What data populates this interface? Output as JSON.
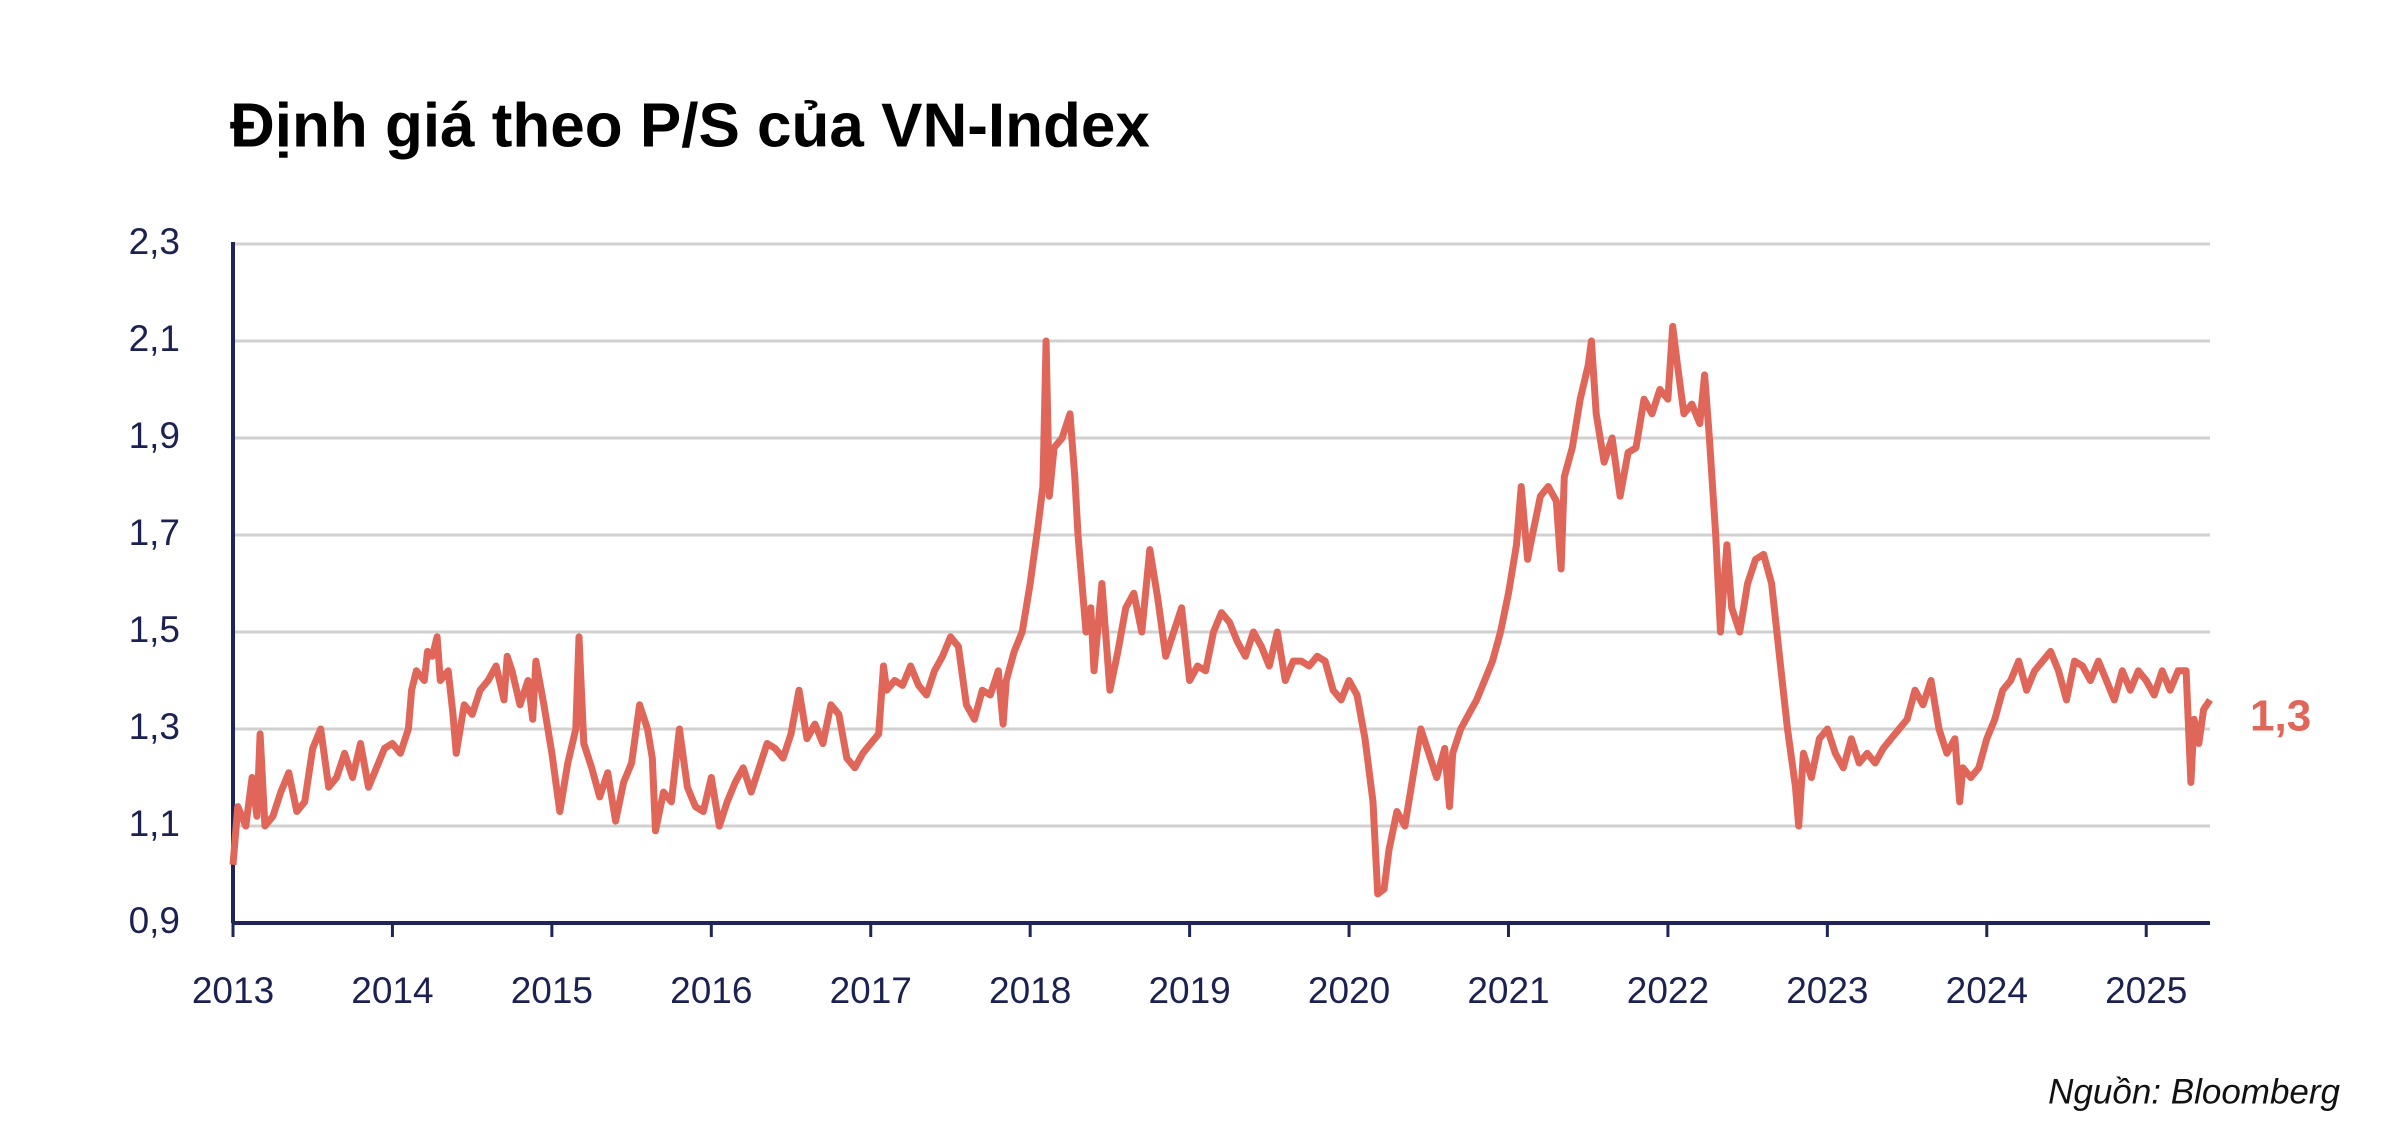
{
  "chart_data": {
    "type": "line",
    "title": "Định giá theo P/S của VN-Index",
    "source": "Nguồn: Bloomberg",
    "annotation": {
      "text": "1,3",
      "value": 1.3
    },
    "xlim": [
      2013,
      2025.4
    ],
    "xticks": [
      2013,
      2014,
      2015,
      2016,
      2017,
      2018,
      2019,
      2020,
      2021,
      2022,
      2023,
      2024,
      2025
    ],
    "ylim": [
      0.9,
      2.3
    ],
    "yticks": [
      {
        "value": 0.9,
        "label": "0,9"
      },
      {
        "value": 1.1,
        "label": "1,1"
      },
      {
        "value": 1.3,
        "label": "1,3"
      },
      {
        "value": 1.5,
        "label": "1,5"
      },
      {
        "value": 1.7,
        "label": "1,7"
      },
      {
        "value": 1.9,
        "label": "1,9"
      },
      {
        "value": 2.1,
        "label": "2,1"
      },
      {
        "value": 2.3,
        "label": "2,3"
      }
    ],
    "grid": true,
    "x": [
      2013.0,
      2013.03,
      2013.08,
      2013.12,
      2013.15,
      2013.17,
      2013.2,
      2013.25,
      2013.3,
      2013.35,
      2013.4,
      2013.45,
      2013.5,
      2013.55,
      2013.6,
      2013.65,
      2013.7,
      2013.75,
      2013.8,
      2013.85,
      2013.9,
      2013.95,
      2014.0,
      2014.05,
      2014.1,
      2014.12,
      2014.15,
      2014.2,
      2014.22,
      2014.25,
      2014.28,
      2014.3,
      2014.35,
      2014.38,
      2014.4,
      2014.45,
      2014.5,
      2014.55,
      2014.6,
      2014.65,
      2014.7,
      2014.72,
      2014.75,
      2014.8,
      2014.85,
      2014.88,
      2014.9,
      2014.95,
      2015.0,
      2015.05,
      2015.1,
      2015.15,
      2015.17,
      2015.2,
      2015.25,
      2015.3,
      2015.35,
      2015.4,
      2015.45,
      2015.5,
      2015.55,
      2015.6,
      2015.63,
      2015.65,
      2015.7,
      2015.75,
      2015.8,
      2015.85,
      2015.9,
      2015.95,
      2016.0,
      2016.05,
      2016.1,
      2016.15,
      2016.2,
      2016.25,
      2016.3,
      2016.35,
      2016.4,
      2016.45,
      2016.5,
      2016.55,
      2016.6,
      2016.65,
      2016.7,
      2016.75,
      2016.8,
      2016.85,
      2016.9,
      2016.95,
      2017.0,
      2017.05,
      2017.08,
      2017.1,
      2017.15,
      2017.2,
      2017.25,
      2017.3,
      2017.35,
      2017.4,
      2017.45,
      2017.5,
      2017.55,
      2017.6,
      2017.65,
      2017.7,
      2017.75,
      2017.8,
      2017.83,
      2017.85,
      2017.9,
      2017.95,
      2018.0,
      2018.05,
      2018.08,
      2018.1,
      2018.12,
      2018.15,
      2018.2,
      2018.25,
      2018.28,
      2018.3,
      2018.35,
      2018.38,
      2018.4,
      2018.45,
      2018.5,
      2018.55,
      2018.6,
      2018.65,
      2018.7,
      2018.75,
      2018.8,
      2018.85,
      2018.9,
      2018.95,
      2019.0,
      2019.05,
      2019.1,
      2019.15,
      2019.2,
      2019.25,
      2019.3,
      2019.35,
      2019.4,
      2019.45,
      2019.5,
      2019.55,
      2019.6,
      2019.65,
      2019.7,
      2019.75,
      2019.8,
      2019.85,
      2019.9,
      2019.95,
      2020.0,
      2020.05,
      2020.1,
      2020.15,
      2020.18,
      2020.22,
      2020.25,
      2020.3,
      2020.35,
      2020.4,
      2020.45,
      2020.5,
      2020.55,
      2020.6,
      2020.63,
      2020.65,
      2020.7,
      2020.75,
      2020.8,
      2020.85,
      2020.9,
      2020.95,
      2021.0,
      2021.05,
      2021.08,
      2021.12,
      2021.15,
      2021.2,
      2021.25,
      2021.3,
      2021.33,
      2021.35,
      2021.4,
      2021.45,
      2021.5,
      2021.52,
      2021.55,
      2021.6,
      2021.65,
      2021.7,
      2021.75,
      2021.8,
      2021.85,
      2021.9,
      2021.95,
      2022.0,
      2022.03,
      2022.06,
      2022.1,
      2022.15,
      2022.2,
      2022.23,
      2022.26,
      2022.3,
      2022.33,
      2022.37,
      2022.4,
      2022.45,
      2022.5,
      2022.55,
      2022.6,
      2022.65,
      2022.7,
      2022.75,
      2022.8,
      2022.82,
      2022.85,
      2022.9,
      2022.95,
      2023.0,
      2023.05,
      2023.1,
      2023.15,
      2023.2,
      2023.25,
      2023.3,
      2023.35,
      2023.4,
      2023.45,
      2023.5,
      2023.55,
      2023.6,
      2023.65,
      2023.7,
      2023.75,
      2023.8,
      2023.83,
      2023.85,
      2023.9,
      2023.95,
      2024.0,
      2024.05,
      2024.1,
      2024.15,
      2024.2,
      2024.25,
      2024.3,
      2024.35,
      2024.4,
      2024.45,
      2024.5,
      2024.55,
      2024.6,
      2024.65,
      2024.7,
      2024.75,
      2024.8,
      2024.85,
      2024.9,
      2024.95,
      2025.0,
      2025.05,
      2025.1,
      2025.15,
      2025.2,
      2025.25,
      2025.28,
      2025.3,
      2025.33,
      2025.36,
      2025.4
    ],
    "series": [
      {
        "color": "#e0665a",
        "values": [
          1.02,
          1.14,
          1.1,
          1.2,
          1.12,
          1.29,
          1.1,
          1.12,
          1.17,
          1.21,
          1.13,
          1.15,
          1.26,
          1.3,
          1.18,
          1.2,
          1.25,
          1.2,
          1.27,
          1.18,
          1.22,
          1.26,
          1.27,
          1.25,
          1.3,
          1.38,
          1.42,
          1.4,
          1.46,
          1.45,
          1.49,
          1.4,
          1.42,
          1.33,
          1.25,
          1.35,
          1.33,
          1.38,
          1.4,
          1.43,
          1.36,
          1.45,
          1.42,
          1.35,
          1.4,
          1.32,
          1.44,
          1.35,
          1.25,
          1.13,
          1.23,
          1.3,
          1.49,
          1.27,
          1.22,
          1.16,
          1.21,
          1.11,
          1.19,
          1.23,
          1.35,
          1.3,
          1.24,
          1.09,
          1.17,
          1.15,
          1.3,
          1.18,
          1.14,
          1.13,
          1.2,
          1.1,
          1.15,
          1.19,
          1.22,
          1.17,
          1.22,
          1.27,
          1.26,
          1.24,
          1.29,
          1.38,
          1.28,
          1.31,
          1.27,
          1.35,
          1.33,
          1.24,
          1.22,
          1.25,
          1.27,
          1.29,
          1.43,
          1.38,
          1.4,
          1.39,
          1.43,
          1.39,
          1.37,
          1.42,
          1.45,
          1.49,
          1.47,
          1.35,
          1.32,
          1.38,
          1.37,
          1.42,
          1.31,
          1.4,
          1.46,
          1.5,
          1.6,
          1.72,
          1.8,
          2.1,
          1.78,
          1.88,
          1.9,
          1.95,
          1.82,
          1.7,
          1.5,
          1.55,
          1.42,
          1.6,
          1.38,
          1.46,
          1.55,
          1.58,
          1.5,
          1.67,
          1.57,
          1.45,
          1.5,
          1.55,
          1.4,
          1.43,
          1.42,
          1.5,
          1.54,
          1.52,
          1.48,
          1.45,
          1.5,
          1.47,
          1.43,
          1.5,
          1.4,
          1.44,
          1.44,
          1.43,
          1.45,
          1.44,
          1.38,
          1.36,
          1.4,
          1.37,
          1.28,
          1.15,
          0.96,
          0.97,
          1.05,
          1.13,
          1.1,
          1.2,
          1.3,
          1.25,
          1.2,
          1.26,
          1.14,
          1.25,
          1.3,
          1.33,
          1.36,
          1.4,
          1.44,
          1.5,
          1.58,
          1.68,
          1.8,
          1.65,
          1.7,
          1.78,
          1.8,
          1.77,
          1.63,
          1.82,
          1.88,
          1.98,
          2.05,
          2.1,
          1.95,
          1.85,
          1.9,
          1.78,
          1.87,
          1.88,
          1.98,
          1.95,
          2.0,
          1.98,
          2.13,
          2.05,
          1.95,
          1.97,
          1.93,
          2.03,
          1.9,
          1.7,
          1.5,
          1.68,
          1.55,
          1.5,
          1.6,
          1.65,
          1.66,
          1.6,
          1.45,
          1.3,
          1.18,
          1.1,
          1.25,
          1.2,
          1.28,
          1.3,
          1.25,
          1.22,
          1.28,
          1.23,
          1.25,
          1.23,
          1.26,
          1.28,
          1.3,
          1.32,
          1.38,
          1.35,
          1.4,
          1.3,
          1.25,
          1.28,
          1.15,
          1.22,
          1.2,
          1.22,
          1.28,
          1.32,
          1.38,
          1.4,
          1.44,
          1.38,
          1.42,
          1.44,
          1.46,
          1.42,
          1.36,
          1.44,
          1.43,
          1.4,
          1.44,
          1.4,
          1.36,
          1.42,
          1.38,
          1.42,
          1.4,
          1.37,
          1.42,
          1.38,
          1.42,
          1.42,
          1.19,
          1.32,
          1.27,
          1.34,
          1.36
        ]
      }
    ]
  }
}
